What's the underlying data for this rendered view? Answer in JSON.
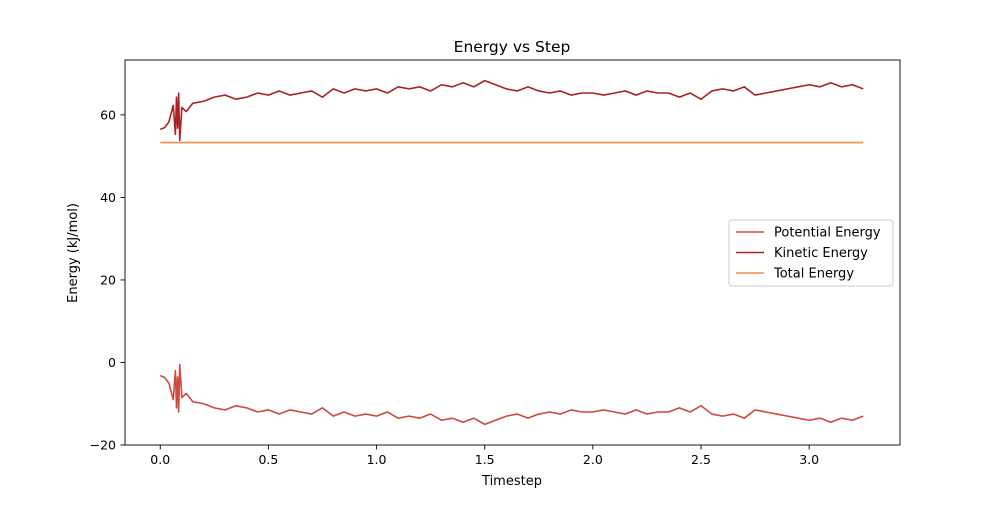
{
  "chart_data": {
    "type": "line",
    "title": "Energy vs Step",
    "xlabel": "Timestep",
    "ylabel": "Energy (kJ/mol)",
    "xlim": [
      -0.163,
      3.42
    ],
    "ylim": [
      -20,
      73.3
    ],
    "xticks": [
      0.0,
      0.5,
      1.0,
      1.5,
      2.0,
      2.5,
      3.0
    ],
    "xtick_labels": [
      "0.0",
      "0.5",
      "1.0",
      "1.5",
      "2.0",
      "2.5",
      "3.0"
    ],
    "yticks": [
      -20,
      0,
      20,
      40,
      60
    ],
    "ytick_labels": [
      "−20",
      "0",
      "20",
      "40",
      "60"
    ],
    "grid": false,
    "legend_position": "center-right",
    "series": [
      {
        "name": "Potential Energy",
        "color": "#cd4a3c",
        "x": [
          0.0,
          0.02,
          0.04,
          0.06,
          0.07,
          0.075,
          0.08,
          0.085,
          0.09,
          0.1,
          0.12,
          0.15,
          0.2,
          0.25,
          0.3,
          0.35,
          0.4,
          0.45,
          0.5,
          0.55,
          0.6,
          0.65,
          0.7,
          0.75,
          0.8,
          0.85,
          0.9,
          0.95,
          1.0,
          1.05,
          1.1,
          1.15,
          1.2,
          1.25,
          1.3,
          1.35,
          1.4,
          1.45,
          1.5,
          1.55,
          1.6,
          1.65,
          1.7,
          1.75,
          1.8,
          1.85,
          1.9,
          1.95,
          2.0,
          2.05,
          2.1,
          2.15,
          2.2,
          2.25,
          2.3,
          2.35,
          2.4,
          2.45,
          2.5,
          2.55,
          2.6,
          2.65,
          2.7,
          2.75,
          2.8,
          2.85,
          2.9,
          2.95,
          3.0,
          3.05,
          3.1,
          3.15,
          3.2,
          3.25
        ],
        "y": [
          -3.2,
          -3.6,
          -5.0,
          -9.0,
          -2.0,
          -11.0,
          -3.5,
          -12.0,
          -0.5,
          -8.5,
          -7.5,
          -9.5,
          -10.0,
          -11.0,
          -11.5,
          -10.5,
          -11.0,
          -12.0,
          -11.5,
          -12.5,
          -11.5,
          -12.0,
          -12.5,
          -11.0,
          -13.0,
          -12.0,
          -13.0,
          -12.5,
          -13.0,
          -12.0,
          -13.5,
          -13.0,
          -13.5,
          -12.5,
          -14.0,
          -13.5,
          -14.5,
          -13.5,
          -15.0,
          -14.0,
          -13.0,
          -12.5,
          -13.5,
          -12.5,
          -12.0,
          -12.5,
          -11.5,
          -12.0,
          -12.0,
          -11.5,
          -12.0,
          -12.5,
          -11.5,
          -12.5,
          -12.0,
          -12.0,
          -11.0,
          -12.0,
          -10.5,
          -12.5,
          -13.0,
          -12.5,
          -13.5,
          -11.5,
          -12.0,
          -12.5,
          -13.0,
          -13.5,
          -14.0,
          -13.5,
          -14.5,
          -13.5,
          -14.0,
          -13.0
        ]
      },
      {
        "name": "Kinetic Energy",
        "color": "#a82323",
        "x": [
          0.0,
          0.02,
          0.04,
          0.06,
          0.07,
          0.075,
          0.08,
          0.085,
          0.09,
          0.1,
          0.12,
          0.15,
          0.2,
          0.25,
          0.3,
          0.35,
          0.4,
          0.45,
          0.5,
          0.55,
          0.6,
          0.65,
          0.7,
          0.75,
          0.8,
          0.85,
          0.9,
          0.95,
          1.0,
          1.05,
          1.1,
          1.15,
          1.2,
          1.25,
          1.3,
          1.35,
          1.4,
          1.45,
          1.5,
          1.55,
          1.6,
          1.65,
          1.7,
          1.75,
          1.8,
          1.85,
          1.9,
          1.95,
          2.0,
          2.05,
          2.1,
          2.15,
          2.2,
          2.25,
          2.3,
          2.35,
          2.4,
          2.45,
          2.5,
          2.55,
          2.6,
          2.65,
          2.7,
          2.75,
          2.8,
          2.85,
          2.9,
          2.95,
          3.0,
          3.05,
          3.1,
          3.15,
          3.2,
          3.25
        ],
        "y": [
          56.5,
          56.9,
          58.3,
          62.3,
          55.3,
          64.3,
          56.8,
          65.3,
          53.8,
          61.8,
          60.8,
          62.8,
          63.3,
          64.3,
          64.8,
          63.8,
          64.3,
          65.3,
          64.8,
          65.8,
          64.8,
          65.3,
          65.8,
          64.3,
          66.3,
          65.3,
          66.3,
          65.8,
          66.3,
          65.3,
          66.8,
          66.3,
          66.8,
          65.8,
          67.3,
          66.8,
          67.8,
          66.8,
          68.3,
          67.3,
          66.3,
          65.8,
          66.8,
          65.8,
          65.3,
          65.8,
          64.8,
          65.3,
          65.3,
          64.8,
          65.3,
          65.8,
          64.8,
          65.8,
          65.3,
          65.3,
          64.3,
          65.3,
          63.8,
          65.8,
          66.3,
          65.8,
          66.8,
          64.8,
          65.3,
          65.8,
          66.3,
          66.8,
          67.3,
          66.8,
          67.8,
          66.8,
          67.3,
          66.3
        ]
      },
      {
        "name": "Total Energy",
        "color": "#ee8c50",
        "x": [
          0.0,
          3.25
        ],
        "y": [
          53.3,
          53.3
        ]
      }
    ]
  }
}
